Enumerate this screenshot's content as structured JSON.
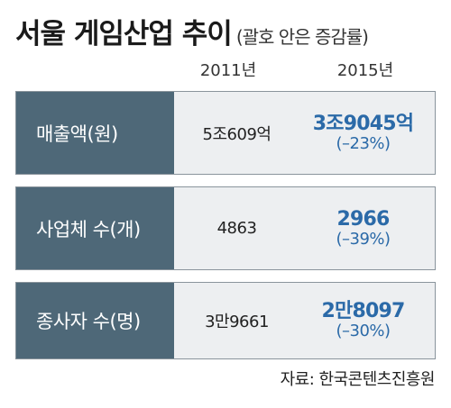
{
  "title": "서울 게임산업 추이",
  "subtitle": "(괄호 안은 증감률)",
  "chart_data": {
    "type": "table",
    "title": "서울 게임산업 추이",
    "subtitle": "(괄호 안은 증감률)",
    "columns": [
      "2011년",
      "2015년"
    ],
    "rows": [
      {
        "label": "매출액(원)",
        "v2011": "5조609억",
        "v2015": "3조9045억",
        "change": "(–23%)"
      },
      {
        "label": "사업체 수(개)",
        "v2011": "4863",
        "v2015": "2966",
        "change": "(–39%)"
      },
      {
        "label": "종사자 수(명)",
        "v2011": "3만9661",
        "v2015": "2만8097",
        "change": "(–30%)"
      }
    ]
  },
  "source": "자료: 한국콘텐츠진흥원",
  "colors": {
    "label_bg": "#4e6878",
    "row_bg": "#edeff1",
    "accent": "#2b6aa8"
  }
}
